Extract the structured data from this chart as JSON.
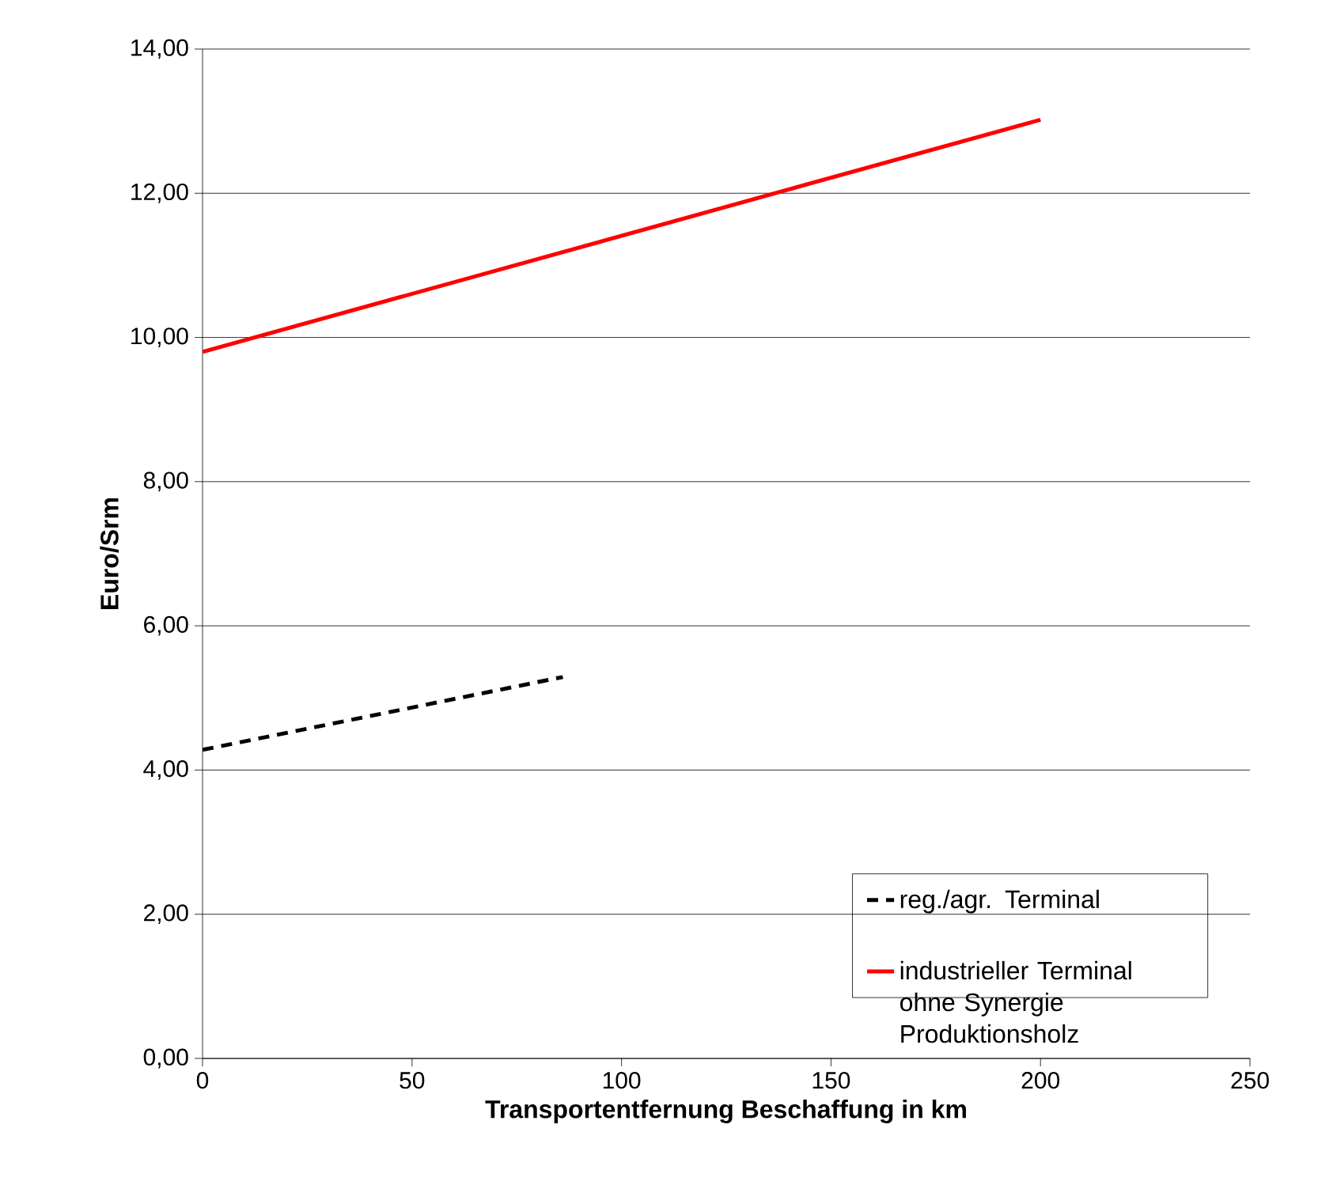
{
  "chart_data": {
    "type": "line",
    "xlabel": "Transportentfernung Beschaffung in km",
    "ylabel": "Euro/Srm",
    "xlim": [
      0,
      250
    ],
    "xticks": [
      0,
      50,
      100,
      150,
      200,
      250
    ],
    "ylim": [
      0,
      14
    ],
    "yticks": [
      {
        "value": 0,
        "label": "0,00"
      },
      {
        "value": 2,
        "label": "2,00"
      },
      {
        "value": 4,
        "label": "4,00"
      },
      {
        "value": 6,
        "label": "6,00"
      },
      {
        "value": 8,
        "label": "8,00"
      },
      {
        "value": 10,
        "label": "10,00"
      },
      {
        "value": 12,
        "label": "12,00"
      },
      {
        "value": 14,
        "label": "14,00"
      }
    ],
    "grid": "y",
    "legend": "bottom right",
    "series": [
      {
        "name": "reg./agr. Terminal",
        "color": "#000000",
        "line_style": "dashed",
        "x": [
          0,
          86
        ],
        "values": [
          4.28,
          5.29
        ]
      },
      {
        "name": "industrieller Terminal ohne Synergie Produktionsholz",
        "color": "#ff0000",
        "line_style": "solid",
        "x": [
          0,
          200
        ],
        "values": [
          9.8,
          13.02
        ]
      }
    ]
  }
}
